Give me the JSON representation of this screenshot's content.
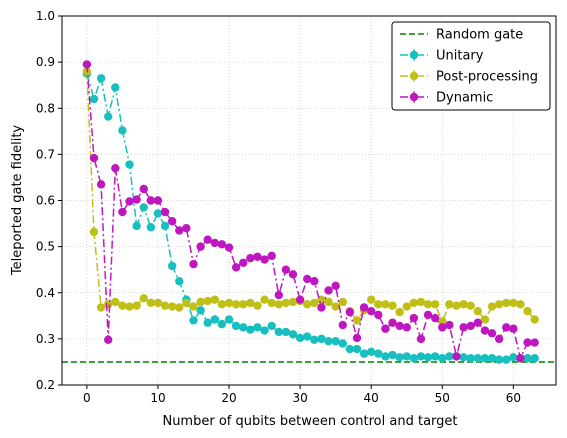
{
  "chart_data": {
    "type": "line",
    "title": "",
    "xlabel": "Number of qubits between control and target",
    "ylabel": "Teleported gate fidelity",
    "xlim": [
      -3.5,
      66
    ],
    "ylim": [
      0.2,
      1.0
    ],
    "xticks": [
      0,
      10,
      20,
      30,
      40,
      50,
      60
    ],
    "yticks": [
      0.2,
      0.3,
      0.4,
      0.5,
      0.6,
      0.7,
      0.8,
      0.9,
      1.0
    ],
    "xtick_labels": [
      "0",
      "10",
      "20",
      "30",
      "40",
      "50",
      "60"
    ],
    "ytick_labels": [
      "0.2",
      "0.3",
      "0.4",
      "0.5",
      "0.6",
      "0.7",
      "0.8",
      "0.9",
      "1.0"
    ],
    "grid": true,
    "legend_position": "top-right",
    "reference_line": {
      "name": "Random gate",
      "y": 0.25,
      "color": "#008000",
      "style": "dashed"
    },
    "x": [
      0,
      1,
      2,
      3,
      4,
      5,
      6,
      7,
      8,
      9,
      10,
      11,
      12,
      13,
      14,
      15,
      16,
      17,
      18,
      19,
      20,
      21,
      22,
      23,
      24,
      25,
      26,
      27,
      28,
      29,
      30,
      31,
      32,
      33,
      34,
      35,
      36,
      37,
      38,
      39,
      40,
      41,
      42,
      43,
      44,
      45,
      46,
      47,
      48,
      49,
      50,
      51,
      52,
      53,
      54,
      55,
      56,
      57,
      58,
      59,
      60,
      61,
      62,
      63
    ],
    "series": [
      {
        "name": "Unitary",
        "color": "#17bfbf",
        "style": "dashdot",
        "values": [
          0.875,
          0.82,
          0.865,
          0.782,
          0.845,
          0.752,
          0.678,
          0.545,
          0.585,
          0.542,
          0.572,
          0.545,
          0.458,
          0.425,
          0.385,
          0.34,
          0.362,
          0.335,
          0.342,
          0.332,
          0.342,
          0.328,
          0.325,
          0.32,
          0.325,
          0.318,
          0.328,
          0.315,
          0.315,
          0.31,
          0.302,
          0.305,
          0.298,
          0.3,
          0.295,
          0.295,
          0.29,
          0.278,
          0.278,
          0.268,
          0.272,
          0.268,
          0.262,
          0.265,
          0.26,
          0.262,
          0.258,
          0.262,
          0.26,
          0.262,
          0.258,
          0.262,
          0.262,
          0.26,
          0.258,
          0.258,
          0.258,
          0.258,
          0.255,
          0.255,
          0.26,
          0.258,
          0.258,
          0.258
        ]
      },
      {
        "name": "Post-processing",
        "color": "#bfbf17",
        "style": "dashdot",
        "values": [
          0.88,
          0.532,
          0.368,
          0.375,
          0.38,
          0.372,
          0.37,
          0.372,
          0.388,
          0.378,
          0.378,
          0.372,
          0.37,
          0.368,
          0.378,
          0.37,
          0.38,
          0.382,
          0.385,
          0.375,
          0.378,
          0.375,
          0.375,
          0.378,
          0.372,
          0.385,
          0.378,
          0.375,
          0.378,
          0.38,
          0.382,
          0.375,
          0.378,
          0.385,
          0.38,
          0.37,
          0.38,
          0.36,
          0.34,
          0.362,
          0.385,
          0.375,
          0.375,
          0.372,
          0.358,
          0.37,
          0.378,
          0.38,
          0.375,
          0.375,
          0.338,
          0.375,
          0.372,
          0.375,
          0.372,
          0.36,
          0.342,
          0.37,
          0.375,
          0.378,
          0.378,
          0.375,
          0.36,
          0.342
        ]
      },
      {
        "name": "Dynamic",
        "color": "#bf17bf",
        "style": "dashdot",
        "values": [
          0.895,
          0.692,
          0.635,
          0.298,
          0.67,
          0.575,
          0.598,
          0.602,
          0.625,
          0.6,
          0.6,
          0.575,
          0.555,
          0.535,
          0.54,
          0.462,
          0.5,
          0.515,
          0.508,
          0.505,
          0.498,
          0.455,
          0.465,
          0.475,
          0.478,
          0.472,
          0.48,
          0.395,
          0.45,
          0.44,
          0.385,
          0.43,
          0.425,
          0.368,
          0.405,
          0.415,
          0.33,
          0.358,
          0.302,
          0.368,
          0.36,
          0.352,
          0.322,
          0.335,
          0.328,
          0.325,
          0.345,
          0.3,
          0.352,
          0.345,
          0.325,
          0.33,
          0.262,
          0.325,
          0.328,
          0.335,
          0.318,
          0.312,
          0.3,
          0.325,
          0.322,
          0.258,
          0.292,
          0.292
        ]
      }
    ]
  }
}
